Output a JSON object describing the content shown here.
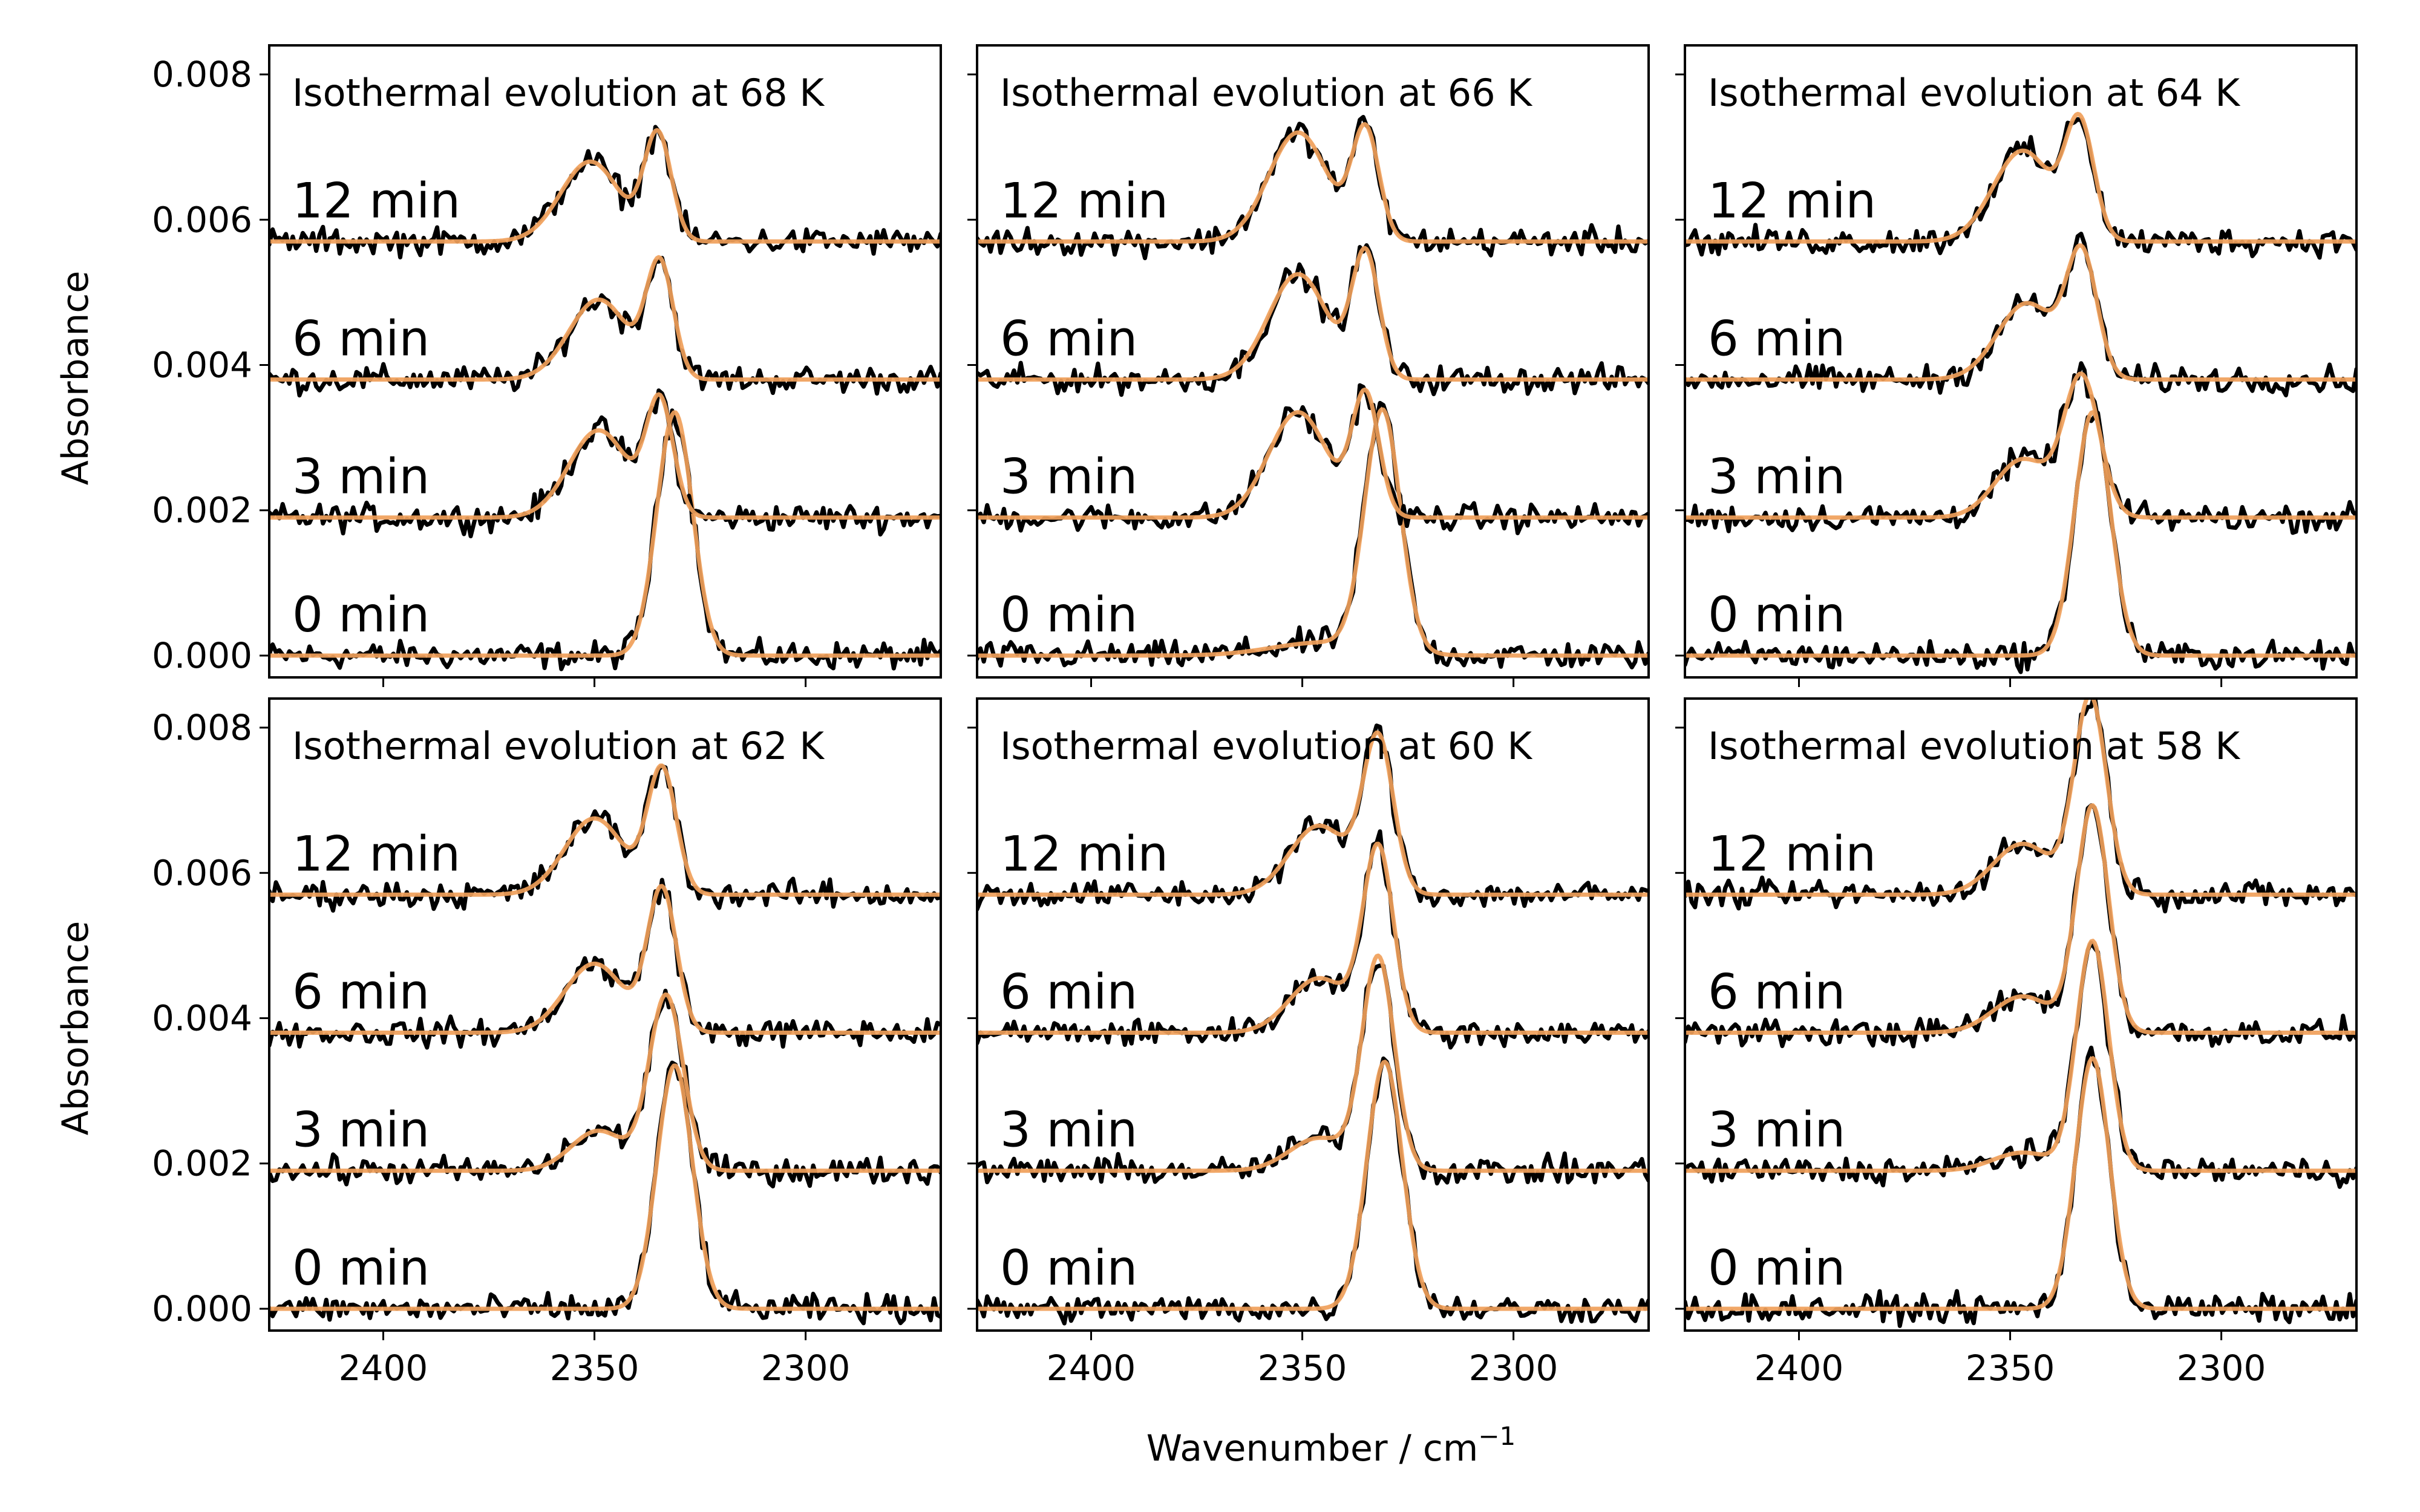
{
  "chart_data": {
    "type": "line",
    "layout": "2x3 panels",
    "xlabel": "Wavenumber / cm",
    "xlabel_superscript": "−1",
    "ylabel": "Absorbance",
    "xlim": [
      2427,
      2268
    ],
    "x_reversed": true,
    "ylim": [
      -0.0003,
      0.0084
    ],
    "x_ticks": [
      2400,
      2350,
      2300
    ],
    "y_ticks": [
      "0.000",
      "0.002",
      "0.004",
      "0.006",
      "0.008"
    ],
    "trace_offsets": [
      0.0,
      0.0019,
      0.0038,
      0.0057
    ],
    "trace_labels": [
      "0 min",
      "3 min",
      "6 min",
      "12 min"
    ],
    "colors": {
      "data": "#000000",
      "fit": "#f0a05a"
    },
    "panels": [
      {
        "title": "Isothermal evolution at 68 K",
        "traces": [
          {
            "label": "0 min",
            "peaks": [
              {
                "center": 2331,
                "height": 0.00335,
                "width": 4.2
              }
            ]
          },
          {
            "label": "3 min",
            "peaks": [
              {
                "center": 2349,
                "height": 0.0012,
                "width": 7.0
              },
              {
                "center": 2334.5,
                "height": 0.00155,
                "width": 3.2
              }
            ]
          },
          {
            "label": "6 min",
            "peaks": [
              {
                "center": 2349,
                "height": 0.0011,
                "width": 7.0
              },
              {
                "center": 2334.5,
                "height": 0.00155,
                "width": 3.2
              }
            ]
          },
          {
            "label": "12 min",
            "peaks": [
              {
                "center": 2351,
                "height": 0.0011,
                "width": 7.0
              },
              {
                "center": 2335,
                "height": 0.00145,
                "width": 3.2
              }
            ]
          }
        ]
      },
      {
        "title": "Isothermal evolution at 66 K",
        "traces": [
          {
            "label": "0 min",
            "peaks": [
              {
                "center": 2331,
                "height": 0.0033,
                "width": 4.2
              },
              {
                "center": 2345,
                "height": 0.00018,
                "width": 12.0
              }
            ]
          },
          {
            "label": "3 min",
            "peaks": [
              {
                "center": 2351,
                "height": 0.00145,
                "width": 7.0
              },
              {
                "center": 2335,
                "height": 0.00165,
                "width": 3.2
              }
            ]
          },
          {
            "label": "6 min",
            "peaks": [
              {
                "center": 2351,
                "height": 0.00145,
                "width": 7.0
              },
              {
                "center": 2335,
                "height": 0.0017,
                "width": 3.2
              }
            ]
          },
          {
            "label": "12 min",
            "peaks": [
              {
                "center": 2351,
                "height": 0.0015,
                "width": 7.0
              },
              {
                "center": 2335,
                "height": 0.0015,
                "width": 3.2
              }
            ]
          }
        ]
      },
      {
        "title": "Isothermal evolution at 64 K",
        "traces": [
          {
            "label": "0 min",
            "peaks": [
              {
                "center": 2330.5,
                "height": 0.00335,
                "width": 4.2
              }
            ]
          },
          {
            "label": "3 min",
            "peaks": [
              {
                "center": 2347,
                "height": 0.0008,
                "width": 6.5
              },
              {
                "center": 2333,
                "height": 0.0019,
                "width": 4.2
              }
            ]
          },
          {
            "label": "6 min",
            "peaks": [
              {
                "center": 2346,
                "height": 0.00105,
                "width": 7.0
              },
              {
                "center": 2333,
                "height": 0.00165,
                "width": 3.6
              }
            ]
          },
          {
            "label": "12 min",
            "peaks": [
              {
                "center": 2347,
                "height": 0.00125,
                "width": 7.0
              },
              {
                "center": 2333.5,
                "height": 0.00155,
                "width": 3.4
              }
            ]
          }
        ]
      },
      {
        "title": "Isothermal evolution at 62 K",
        "traces": [
          {
            "label": "0 min",
            "peaks": [
              {
                "center": 2331,
                "height": 0.00335,
                "width": 4.2
              }
            ]
          },
          {
            "label": "3 min",
            "peaks": [
              {
                "center": 2349,
                "height": 0.00055,
                "width": 6.5
              },
              {
                "center": 2333,
                "height": 0.0024,
                "width": 4.0
              }
            ]
          },
          {
            "label": "6 min",
            "peaks": [
              {
                "center": 2350,
                "height": 0.00095,
                "width": 7.0
              },
              {
                "center": 2334,
                "height": 0.00195,
                "width": 3.4
              }
            ]
          },
          {
            "label": "12 min",
            "peaks": [
              {
                "center": 2350,
                "height": 0.00105,
                "width": 7.0
              },
              {
                "center": 2334,
                "height": 0.0017,
                "width": 3.4
              }
            ]
          }
        ]
      },
      {
        "title": "Isothermal evolution at 60 K",
        "traces": [
          {
            "label": "0 min",
            "peaks": [
              {
                "center": 2330.5,
                "height": 0.0034,
                "width": 4.2
              }
            ]
          },
          {
            "label": "3 min",
            "peaks": [
              {
                "center": 2346,
                "height": 0.00045,
                "width": 7.0
              },
              {
                "center": 2332,
                "height": 0.0029,
                "width": 3.8
              }
            ]
          },
          {
            "label": "6 min",
            "peaks": [
              {
                "center": 2346,
                "height": 0.00075,
                "width": 7.0
              },
              {
                "center": 2332,
                "height": 0.0025,
                "width": 3.6
              }
            ]
          },
          {
            "label": "12 min",
            "peaks": [
              {
                "center": 2346,
                "height": 0.00095,
                "width": 7.0
              },
              {
                "center": 2332,
                "height": 0.0021,
                "width": 3.6
              }
            ]
          }
        ]
      },
      {
        "title": "Isothermal evolution at 58 K",
        "traces": [
          {
            "label": "0 min",
            "peaks": [
              {
                "center": 2330.5,
                "height": 0.00345,
                "width": 4.0
              }
            ]
          },
          {
            "label": "3 min",
            "peaks": [
              {
                "center": 2347,
                "height": 0.00025,
                "width": 7.0
              },
              {
                "center": 2330.5,
                "height": 0.00315,
                "width": 3.8
              }
            ]
          },
          {
            "label": "6 min",
            "peaks": [
              {
                "center": 2347,
                "height": 0.0005,
                "width": 7.0
              },
              {
                "center": 2330.5,
                "height": 0.0031,
                "width": 3.8
              }
            ]
          },
          {
            "label": "12 min",
            "peaks": [
              {
                "center": 2347,
                "height": 0.0007,
                "width": 7.0
              },
              {
                "center": 2331,
                "height": 0.0027,
                "width": 3.8
              }
            ]
          }
        ]
      }
    ]
  }
}
